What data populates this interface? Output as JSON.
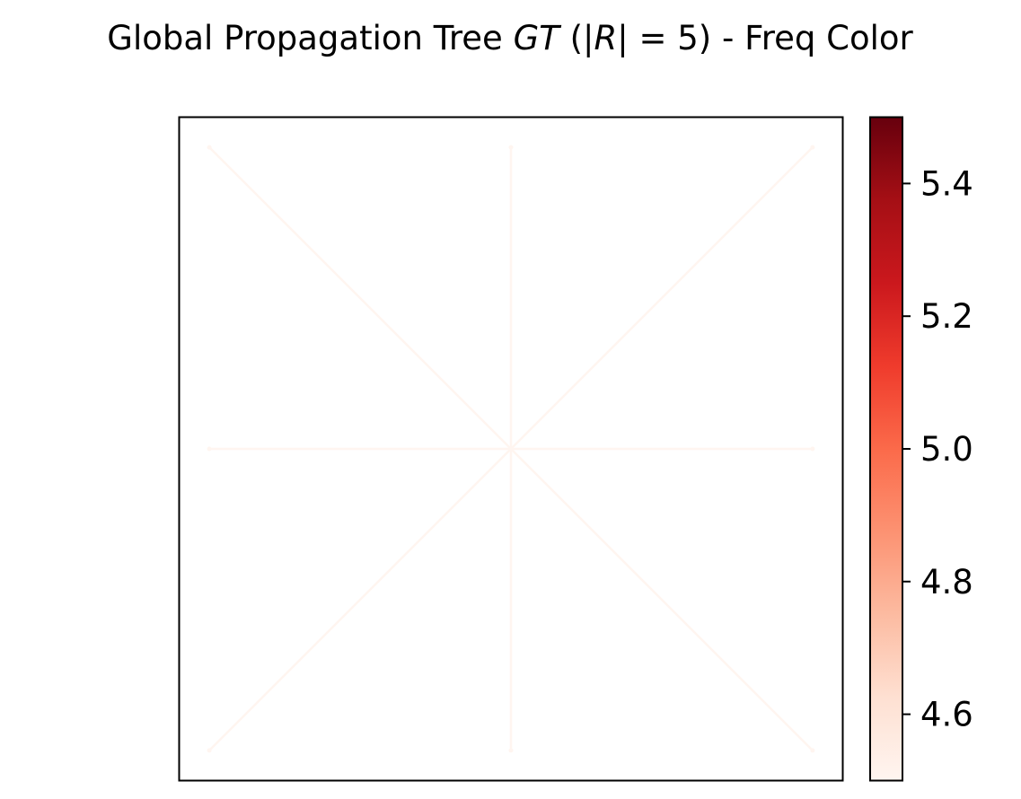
{
  "chart_data": {
    "type": "line",
    "title": {
      "prefix": "Global Propagation Tree ",
      "symbol_gt": "GT",
      "paren_open": " (|",
      "symbol_r": "R",
      "equals": "| =  ",
      "count": "5",
      "suffix": ") - Freq Color"
    },
    "xlabel": "",
    "ylabel": "",
    "axes_ticks_visible": false,
    "xlim": [
      -1.1,
      1.1
    ],
    "ylim": [
      -1.1,
      1.1
    ],
    "center": [
      0,
      0
    ],
    "edges": [
      {
        "from": [
          0,
          0
        ],
        "to": [
          1,
          1
        ],
        "freq": 4.5
      },
      {
        "from": [
          0,
          0
        ],
        "to": [
          0,
          1
        ],
        "freq": 4.5
      },
      {
        "from": [
          0,
          0
        ],
        "to": [
          -1,
          1
        ],
        "freq": 4.5
      },
      {
        "from": [
          0,
          0
        ],
        "to": [
          -1,
          0
        ],
        "freq": 4.5
      },
      {
        "from": [
          0,
          0
        ],
        "to": [
          -1,
          -1
        ],
        "freq": 4.5
      },
      {
        "from": [
          0,
          0
        ],
        "to": [
          0,
          -1
        ],
        "freq": 4.5
      },
      {
        "from": [
          0,
          0
        ],
        "to": [
          1,
          -1
        ],
        "freq": 4.5
      },
      {
        "from": [
          0,
          0
        ],
        "to": [
          1,
          0
        ],
        "freq": 4.5
      }
    ],
    "colorbar": {
      "colormap": "Reds",
      "range": [
        4.5,
        5.5
      ],
      "ticks": [
        4.6,
        4.8,
        5.0,
        5.2,
        5.4
      ],
      "tick_labels": [
        "4.6",
        "4.8",
        "5.0",
        "5.2",
        "5.4"
      ],
      "colors": [
        "#fff5f0",
        "#fee0d2",
        "#fcbba1",
        "#fc9272",
        "#fb6a4a",
        "#ef3b2c",
        "#cb181d",
        "#a50f15",
        "#67000d"
      ]
    }
  }
}
